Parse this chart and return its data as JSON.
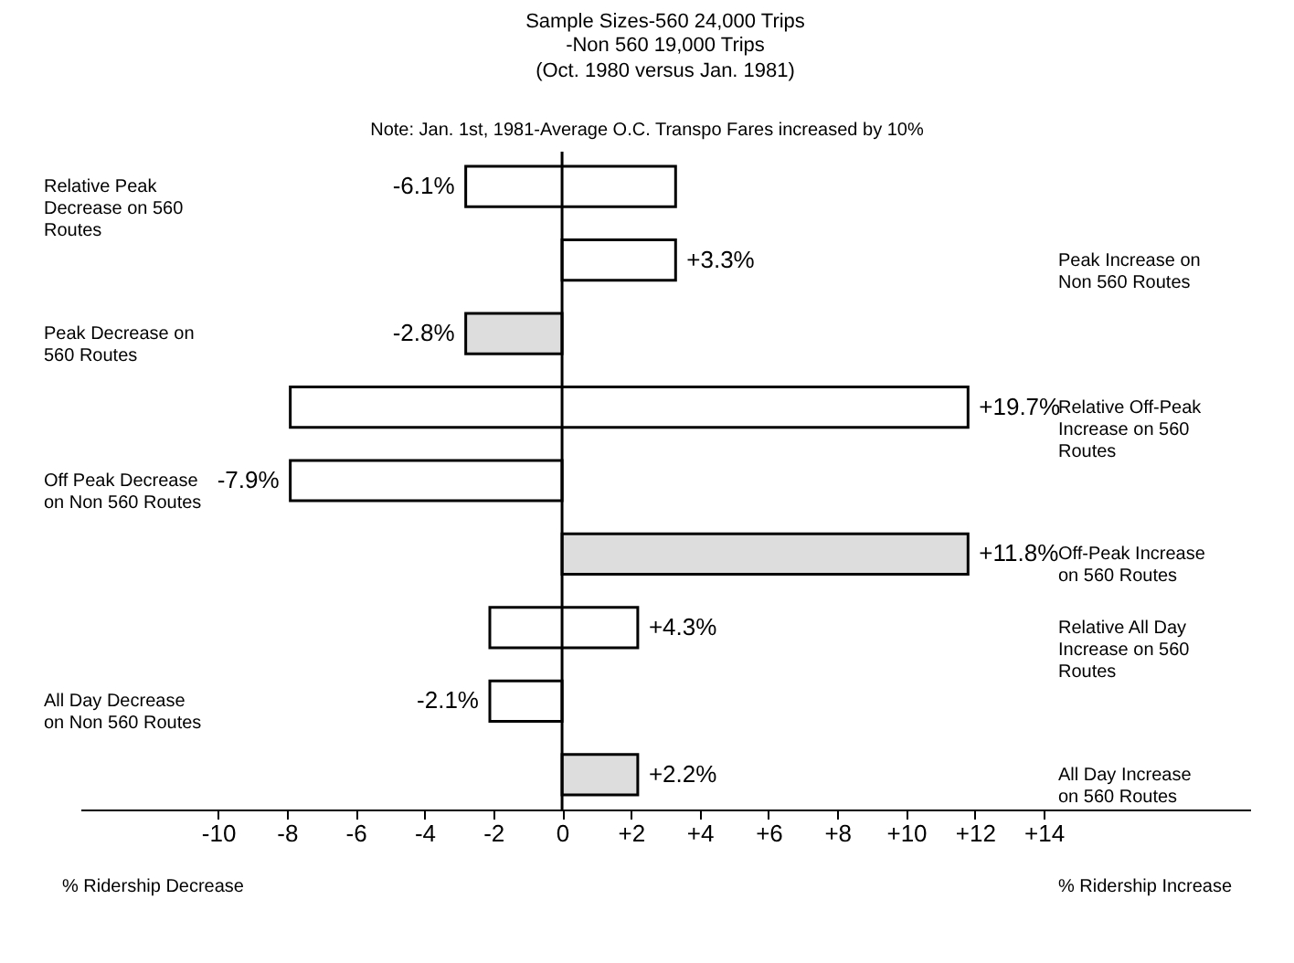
{
  "chart_data": {
    "type": "bar",
    "orientation": "horizontal",
    "title": "Sample Sizes-560 24,000 Trips\n-Non 560 19,000 Trips",
    "subtitle": "(Oct. 1980 versus Jan. 1981)",
    "annotations": [
      "Note: Jan. 1st, 1981-Average O.C. Transpo Fares increased by 10%",
      "% Ridership Decrease",
      "% Ridership Increase"
    ],
    "categories": [
      "Relative Peak Decrease on 560 Routes",
      "Peak Increase on Non 560 Routes",
      "Peak Decrease on 560 Routes",
      "Relative Off-Peak Increase on 560 Routes",
      "Off Peak Decrease on Non 560 Routes",
      "Off-Peak Increase on 560 Routes",
      "Relative All Day Increase on 560 Routes",
      "All Day Decrease on Non 560 Routes",
      "All Day Increase on 560 Routes"
    ],
    "values": [
      -6.1,
      3.3,
      -2.8,
      19.7,
      -7.9,
      11.8,
      4.3,
      -2.1,
      2.2
    ],
    "base": [
      3.3,
      0,
      0,
      -7.9,
      0,
      0,
      -2.1,
      0,
      0
    ],
    "colors": [
      "#ffffff",
      "#ffffff",
      "#dddddd",
      "#ffffff",
      "#ffffff",
      "#dddddd",
      "#ffffff",
      "#ffffff",
      "#dddddd"
    ],
    "value_labels": [
      "-6.1%",
      "+3.3%",
      "-2.8%",
      "+19.7%",
      "-7.9%",
      "+11.8%",
      "+4.3%",
      "-2.1%",
      "+2.2%"
    ],
    "xlim": [
      -14,
      20
    ],
    "xticks": [
      -10,
      -8,
      -6,
      -4,
      -2,
      0,
      {
        "value": 2,
        "label": "+2"
      },
      {
        "value": 4,
        "label": "+4"
      },
      {
        "value": 6,
        "label": "+6"
      },
      {
        "value": 8,
        "label": "+8"
      },
      {
        "value": 10,
        "label": "+10"
      },
      {
        "value": 12,
        "label": "+12"
      },
      {
        "value": 14,
        "label": "+14"
      }
    ],
    "ref_lines": [
      {
        "axis": "x",
        "value": 0,
        "color": "#000000"
      }
    ],
    "grid": false
  }
}
